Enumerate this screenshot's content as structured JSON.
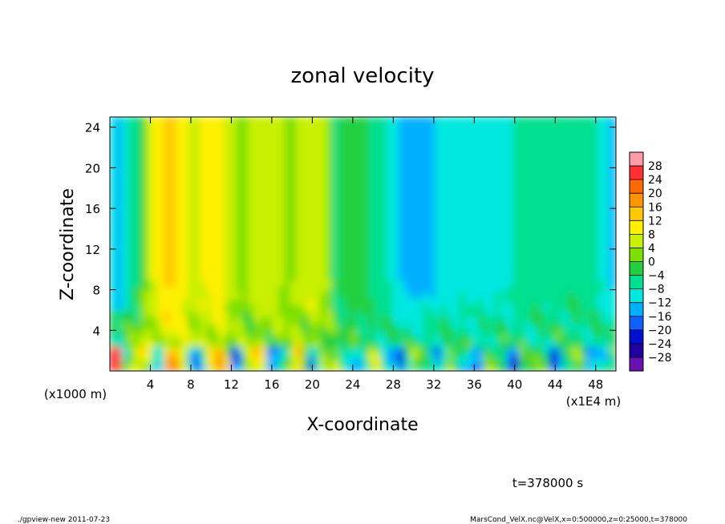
{
  "chart_data": {
    "type": "heatmap",
    "title": "zonal velocity",
    "xlabel": "X-coordinate",
    "ylabel": "Z-coordinate",
    "x_unit_note": "(x1E4 m)",
    "y_unit_note": "(x1000 m)",
    "xlim": [
      0,
      50
    ],
    "ylim": [
      0,
      25
    ],
    "x_ticks": [
      4,
      8,
      12,
      16,
      20,
      24,
      28,
      32,
      36,
      40,
      44,
      48
    ],
    "y_ticks": [
      4,
      8,
      12,
      16,
      20,
      24
    ],
    "colorbar_levels": [
      28,
      24,
      20,
      16,
      12,
      8,
      4,
      0,
      -4,
      -8,
      -12,
      -16,
      -20,
      -24,
      -28
    ],
    "colorbar_colors": [
      "#ff9aa8",
      "#ff3030",
      "#ff6a00",
      "#ff9600",
      "#ffc800",
      "#fff000",
      "#c8f000",
      "#7ee000",
      "#20d040",
      "#00e090",
      "#00e8e0",
      "#00b0ff",
      "#1060ff",
      "#0010d0",
      "#2000a0",
      "#6a10b0"
    ],
    "time_label": "t=378000 s",
    "footer_left": "./gpview-new   2011-07-23",
    "footer_right": "MarsCond_VelX.nc@VelX,x=0:500000,z=0:25000,t=378000"
  }
}
